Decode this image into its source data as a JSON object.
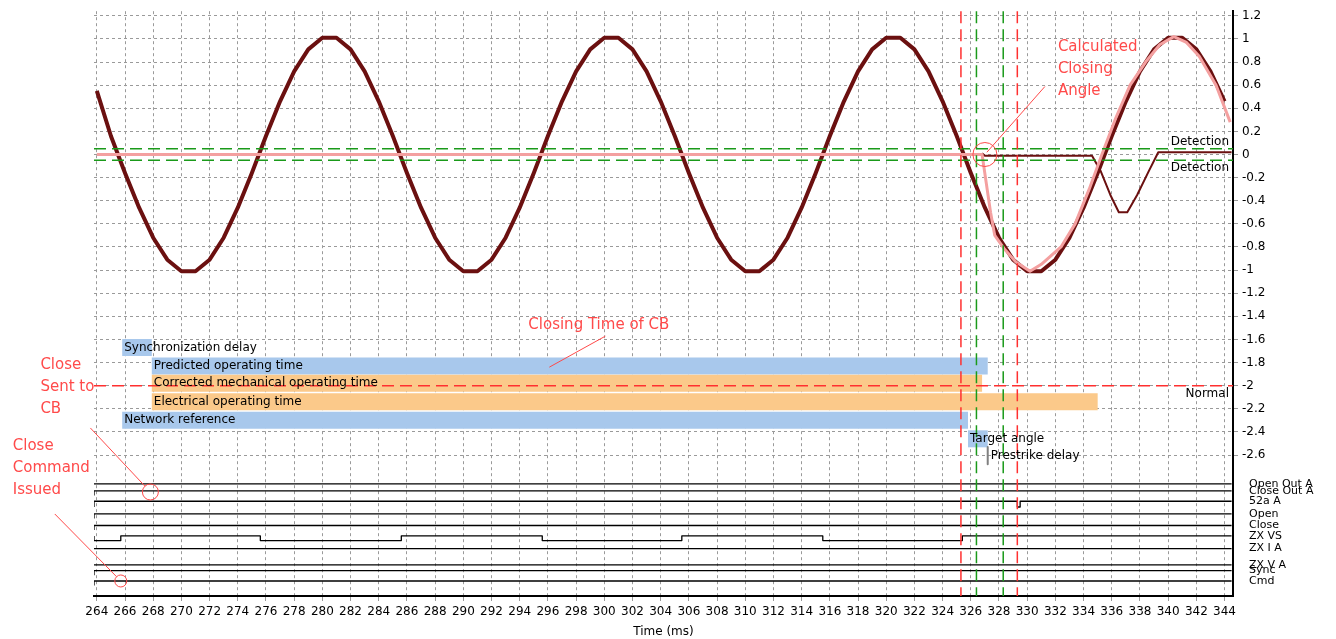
{
  "chart_data": {
    "type": "line",
    "xlabel": "Time (ms)",
    "xlim": [
      263.8,
      344.6
    ],
    "xticks": [
      264,
      266,
      268,
      270,
      272,
      274,
      276,
      278,
      280,
      282,
      284,
      286,
      288,
      290,
      292,
      294,
      296,
      298,
      300,
      302,
      304,
      306,
      308,
      310,
      312,
      314,
      316,
      318,
      320,
      322,
      324,
      326,
      328,
      330,
      332,
      334,
      336,
      338,
      340,
      342,
      344
    ],
    "ylim": [
      -3.82,
      1.24
    ],
    "yticks": [
      1.2,
      1,
      0.8,
      0.6,
      0.4,
      0.2,
      0,
      -0.2,
      -0.4,
      -0.6,
      -0.8,
      -1,
      -1.2,
      -1.4,
      -1.6,
      -1.8,
      -2,
      -2.2,
      -2.4,
      -2.6
    ],
    "grid": true,
    "legend": false,
    "marker": "none",
    "line_style": "solid",
    "series": [
      {
        "type": "line",
        "color": "#6b1010",
        "x": [
          264,
          265,
          266,
          267,
          268,
          269,
          270,
          271,
          272,
          273,
          274,
          275,
          276,
          277,
          278,
          279,
          280,
          281,
          282,
          283,
          284,
          285,
          286,
          287,
          288,
          289,
          290,
          291,
          292,
          293,
          294,
          295,
          296,
          297,
          298,
          299,
          300,
          301,
          302,
          303,
          304,
          305,
          306,
          307,
          308,
          309,
          310,
          311,
          312,
          313,
          314,
          315,
          316,
          317,
          318,
          319,
          320,
          321,
          322,
          323,
          324,
          325,
          326,
          327,
          328,
          329,
          330,
          331,
          332,
          333,
          334,
          335,
          336,
          337,
          338,
          339,
          340,
          341,
          342,
          343,
          344
        ],
        "values": [
          0.55,
          0.16,
          -0.16,
          -0.46,
          -0.72,
          -0.91,
          -1.01,
          -1.01,
          -0.91,
          -0.72,
          -0.46,
          -0.16,
          0.16,
          0.46,
          0.72,
          0.91,
          1.01,
          1.01,
          0.91,
          0.72,
          0.46,
          0.16,
          -0.16,
          -0.46,
          -0.72,
          -0.91,
          -1.01,
          -1.01,
          -0.91,
          -0.72,
          -0.46,
          -0.16,
          0.16,
          0.46,
          0.72,
          0.91,
          1.01,
          1.01,
          0.91,
          0.72,
          0.46,
          0.16,
          -0.16,
          -0.46,
          -0.72,
          -0.91,
          -1.01,
          -1.01,
          -0.91,
          -0.72,
          -0.46,
          -0.16,
          0.16,
          0.46,
          0.72,
          0.91,
          1.01,
          1.01,
          0.91,
          0.72,
          0.46,
          0.16,
          -0.16,
          -0.46,
          -0.72,
          -0.91,
          -1.01,
          -1.01,
          -0.91,
          -0.72,
          -0.46,
          -0.16,
          0.16,
          0.46,
          0.72,
          0.91,
          1.01,
          1.01,
          0.91,
          0.72,
          0.46
        ]
      },
      {
        "type": "line",
        "color": "#6b1010",
        "x": [
          326.8,
          327,
          334.6,
          335.2,
          335.9,
          336.5,
          337.1,
          337.8,
          338.6,
          339.3,
          344.5
        ],
        "values": [
          0.01,
          -0.01,
          -0.01,
          -0.14,
          -0.35,
          -0.5,
          -0.5,
          -0.35,
          -0.15,
          0.02,
          0.02
        ]
      },
      {
        "type": "line",
        "color": "#f4a0a0",
        "x": [
          264,
          326.8,
          327.1,
          327.4,
          327.7,
          328.4,
          329.2,
          330.2,
          331,
          332.4,
          333.4,
          334.4,
          335.3,
          336.3,
          337.3,
          338.4,
          339.4,
          340.4,
          341.3,
          342.2,
          343.4,
          344.4
        ],
        "values": [
          0,
          0,
          -0.25,
          -0.5,
          -0.7,
          -0.82,
          -0.93,
          -1.01,
          -0.95,
          -0.8,
          -0.6,
          -0.3,
          0,
          0.32,
          0.6,
          0.8,
          0.95,
          1.02,
          0.97,
          0.85,
          0.6,
          0.28
        ]
      },
      {
        "type": "line",
        "name": "Synchronization delay",
        "color": "#a8c8ec",
        "x": [
          265.8,
          267.9
        ],
        "values": [
          -1.67,
          -1.67
        ]
      },
      {
        "type": "line",
        "name": "Predicted operating time",
        "color": "#a8c8ec",
        "x": [
          267.9,
          327.2
        ],
        "values": [
          -1.83,
          -1.83
        ]
      },
      {
        "type": "line",
        "name": "Corrected mechanical operating time",
        "color": "#fbc98a",
        "x": [
          267.9,
          326.8
        ],
        "values": [
          -1.98,
          -1.98
        ]
      },
      {
        "type": "line",
        "name": "Electrical operating time",
        "color": "#fbc98a",
        "x": [
          267.9,
          335
        ],
        "values": [
          -2.14,
          -2.14
        ]
      },
      {
        "type": "line",
        "name": "Network reference",
        "color": "#a8c8ec",
        "x": [
          265.8,
          325.8
        ],
        "values": [
          -2.3,
          -2.3
        ]
      },
      {
        "type": "line",
        "name": "Target angle",
        "color": "#a8c8ec",
        "x": [
          325.8,
          327.2
        ],
        "values": [
          -2.46,
          -2.46
        ]
      },
      {
        "type": "line",
        "name": "Prestrike delay",
        "color": "#808080",
        "x": [
          327.2,
          327.2
        ],
        "values": [
          -2.53,
          -2.68
        ]
      },
      {
        "type": "step",
        "name": "Open Out A",
        "color": "#000000",
        "x": [
          263.8,
          344.5
        ],
        "values": [
          -2.85,
          -2.85
        ]
      },
      {
        "type": "step",
        "name": "Close Out A",
        "color": "#000000",
        "x": [
          263.8,
          267.6,
          344.5
        ],
        "values": [
          -2.95,
          -2.91,
          -2.91
        ]
      },
      {
        "type": "step",
        "name": "52a A",
        "color": "#000000",
        "x": [
          263.8,
          329.3,
          329.5,
          329.8,
          344.5
        ],
        "values": [
          -3.05,
          -3,
          -3.05,
          -3,
          -3
        ]
      },
      {
        "type": "step",
        "name": "Open",
        "color": "#000000",
        "x": [
          263.8,
          265.7,
          344.5
        ],
        "values": [
          -3.15,
          -3.11,
          -3.11
        ]
      },
      {
        "type": "step",
        "name": "Close",
        "color": "#000000",
        "x": [
          263.8,
          265.7,
          344.5
        ],
        "values": [
          -3.25,
          -3.21,
          -3.21
        ]
      },
      {
        "type": "step",
        "name": "ZX VS",
        "color": "#000000",
        "x": [
          263.8,
          265.7,
          275.6,
          285.6,
          295.6,
          305.5,
          315.5,
          325.4,
          335,
          344.5
        ],
        "values": [
          -3.3,
          -3.34,
          -3.3,
          -3.34,
          -3.3,
          -3.34,
          -3.3,
          -3.34,
          -3.3,
          -3.3
        ]
      },
      {
        "type": "step",
        "name": "ZX I A",
        "color": "#000000",
        "x": [
          263.8,
          344.5
        ],
        "values": [
          -3.41,
          -3.41
        ]
      },
      {
        "type": "step",
        "name": "ZX V A",
        "color": "#000000",
        "x": [
          263.8,
          344.5
        ],
        "values": [
          -3.55,
          -3.55
        ]
      },
      {
        "type": "step",
        "name": "Sync",
        "color": "#000000",
        "x": [
          263.8,
          265.7,
          344.5
        ],
        "values": [
          -3.64,
          -3.6,
          -3.6
        ]
      },
      {
        "type": "step",
        "name": "Cmd",
        "color": "#000000",
        "x": [
          263.8,
          265.6,
          344.5
        ],
        "values": [
          -3.73,
          -3.69,
          -3.69
        ]
      }
    ],
    "ref_lines": [
      {
        "axis": "y",
        "value": 0.05,
        "label": "Detection",
        "color": "#1a9a1a",
        "line_style": "dashed"
      },
      {
        "axis": "y",
        "value": -0.05,
        "label": "Detection",
        "color": "#1a9a1a",
        "line_style": "dashed"
      },
      {
        "axis": "y",
        "value": -2,
        "label": "Normal",
        "color": "#ff3030",
        "line_style": "dashed"
      },
      {
        "axis": "x",
        "value": 325.3,
        "color": "#ff3030",
        "line_style": "dashed"
      },
      {
        "axis": "x",
        "value": 326.4,
        "color": "#1a9a1a",
        "line_style": "dashed"
      },
      {
        "axis": "x",
        "value": 328.3,
        "color": "#1a9a1a",
        "line_style": "dashed"
      },
      {
        "axis": "x",
        "value": 329.3,
        "color": "#ff3030",
        "line_style": "dashed"
      }
    ],
    "annotations": [
      {
        "text": "Calculated Closing Angle",
        "x": 327,
        "y": 0
      },
      {
        "text": "Closing Time of CB",
        "x": 296.1,
        "y": -1.84
      },
      {
        "text": "Close Sent to CB",
        "x": 267.8,
        "y": -2.92
      },
      {
        "text": "Close Command Issued",
        "x": 265.7,
        "y": -3.69
      }
    ]
  }
}
